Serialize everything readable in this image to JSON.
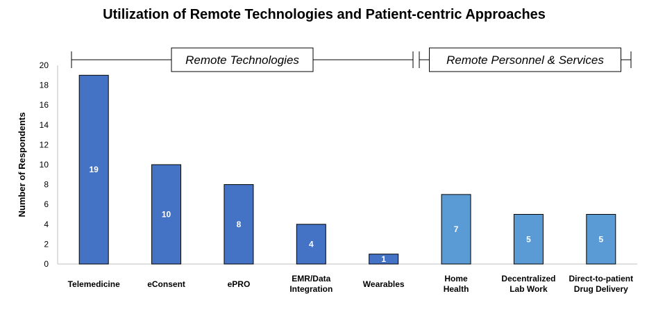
{
  "chart_data": {
    "type": "bar",
    "title": "Utilization of Remote Technologies and Patient-centric Approaches",
    "ylabel": "Number of Respondents",
    "xlabel": "",
    "ylim": [
      0,
      20
    ],
    "yticks": [
      "0",
      "2",
      "4",
      "6",
      "8",
      "10",
      "12",
      "14",
      "16",
      "18",
      "20"
    ],
    "grid": false,
    "categories": [
      [
        "Telemedicine"
      ],
      [
        "eConsent"
      ],
      [
        "ePRO"
      ],
      [
        "EMR/Data",
        "Integration"
      ],
      [
        "Wearables"
      ],
      [
        "Home",
        "Health"
      ],
      [
        "Decentralized",
        "Lab Work"
      ],
      [
        "Direct-to-patient",
        "Drug Delivery"
      ]
    ],
    "values": [
      19,
      10,
      8,
      4,
      1,
      7,
      5,
      5
    ],
    "data_labels": [
      "19",
      "10",
      "8",
      "4",
      "1",
      "7",
      "5",
      "5"
    ],
    "groups": [
      {
        "label": "Remote Technologies",
        "start": 0,
        "end": 4,
        "color": "#4472C4"
      },
      {
        "label": "Remote Personnel & Services",
        "start": 5,
        "end": 7,
        "color": "#5B9BD5"
      }
    ]
  }
}
